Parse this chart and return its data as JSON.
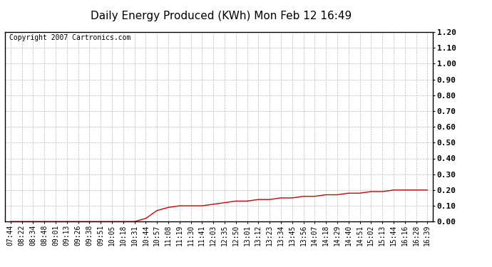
{
  "title": "Daily Energy Produced (KWh) Mon Feb 12 16:49",
  "copyright_text": "Copyright 2007 Cartronics.com",
  "line_color": "#cc0000",
  "background_color": "#ffffff",
  "plot_background": "#ffffff",
  "grid_color": "#bbbbbb",
  "ylim": [
    0.0,
    1.2
  ],
  "yticks": [
    0.0,
    0.1,
    0.2,
    0.3,
    0.4,
    0.5,
    0.6,
    0.7,
    0.8,
    0.9,
    1.0,
    1.1,
    1.2
  ],
  "x_labels": [
    "07:44",
    "08:22",
    "08:34",
    "08:48",
    "09:01",
    "09:13",
    "09:26",
    "09:38",
    "09:51",
    "10:05",
    "10:18",
    "10:31",
    "10:44",
    "10:57",
    "11:08",
    "11:19",
    "11:30",
    "11:41",
    "12:03",
    "12:35",
    "12:50",
    "13:01",
    "13:12",
    "13:23",
    "13:34",
    "13:45",
    "13:56",
    "14:07",
    "14:18",
    "14:29",
    "14:40",
    "14:51",
    "15:02",
    "15:13",
    "15:44",
    "16:16",
    "16:28",
    "16:39"
  ],
  "y_values": [
    0.0,
    0.0,
    0.0,
    0.0,
    0.0,
    0.0,
    0.0,
    0.0,
    0.0,
    0.0,
    0.0,
    0.0,
    0.02,
    0.07,
    0.09,
    0.1,
    0.1,
    0.1,
    0.11,
    0.12,
    0.13,
    0.13,
    0.14,
    0.14,
    0.15,
    0.15,
    0.16,
    0.16,
    0.17,
    0.17,
    0.18,
    0.18,
    0.19,
    0.19,
    0.2,
    0.2,
    0.2,
    0.2
  ],
  "title_fontsize": 11,
  "tick_fontsize": 7,
  "copyright_fontsize": 7,
  "ytick_fontsize": 8
}
